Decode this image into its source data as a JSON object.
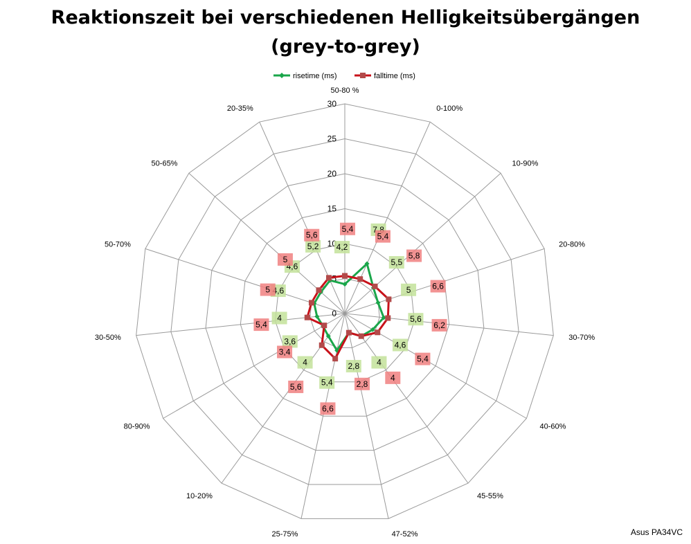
{
  "chart_data": {
    "type": "radar",
    "title": "Reaktionszeit bei verschiedenen Helligkeitsübergängen",
    "subtitle": "(grey-to-grey)",
    "categories": [
      "50-80 %",
      "0-100%",
      "10-90%",
      "20-80%",
      "30-70%",
      "40-60%",
      "45-55%",
      "47-52%",
      "25-75%",
      "10-20%",
      "80-90%",
      "30-50%",
      "50-70%",
      "50-65%",
      "20-35%"
    ],
    "ticks": [
      0,
      5,
      10,
      15,
      20,
      25,
      30
    ],
    "tick_labels": [
      "0",
      "5",
      "10",
      "15",
      "20",
      "25",
      "30"
    ],
    "rmax": 30,
    "legend_position": "top",
    "series": [
      {
        "name": "risetime (ms)",
        "color": "#1aa64a",
        "label_bg": "#c3e29a",
        "values": [
          4.2,
          7.8,
          5.5,
          5,
          5.6,
          4.6,
          4,
          2.8,
          5.4,
          4,
          3.6,
          4,
          4.6,
          4.6,
          5.2
        ],
        "labels": [
          "4,2",
          "7,8",
          "5,5",
          "5",
          "5,6",
          "4,6",
          "4",
          "2,8",
          "5,4",
          "4",
          "3,6",
          "4",
          "4,6",
          "4,6",
          "5,2"
        ]
      },
      {
        "name": "falltime (ms)",
        "color": "#c8111a",
        "label_bg": "#f08080",
        "values": [
          5.4,
          5.4,
          5.8,
          6.6,
          6.2,
          5.4,
          4,
          2.8,
          6.6,
          5.6,
          3.4,
          5.4,
          5,
          5,
          5.6
        ],
        "labels": [
          "5,4",
          "5,4",
          "5,8",
          "6,6",
          "6,2",
          "5,4",
          "4",
          "2,8",
          "6,6",
          "5,6",
          "3,4",
          "5,4",
          "5",
          "5",
          "5,6"
        ]
      }
    ]
  },
  "footer": "Asus PA34VC"
}
